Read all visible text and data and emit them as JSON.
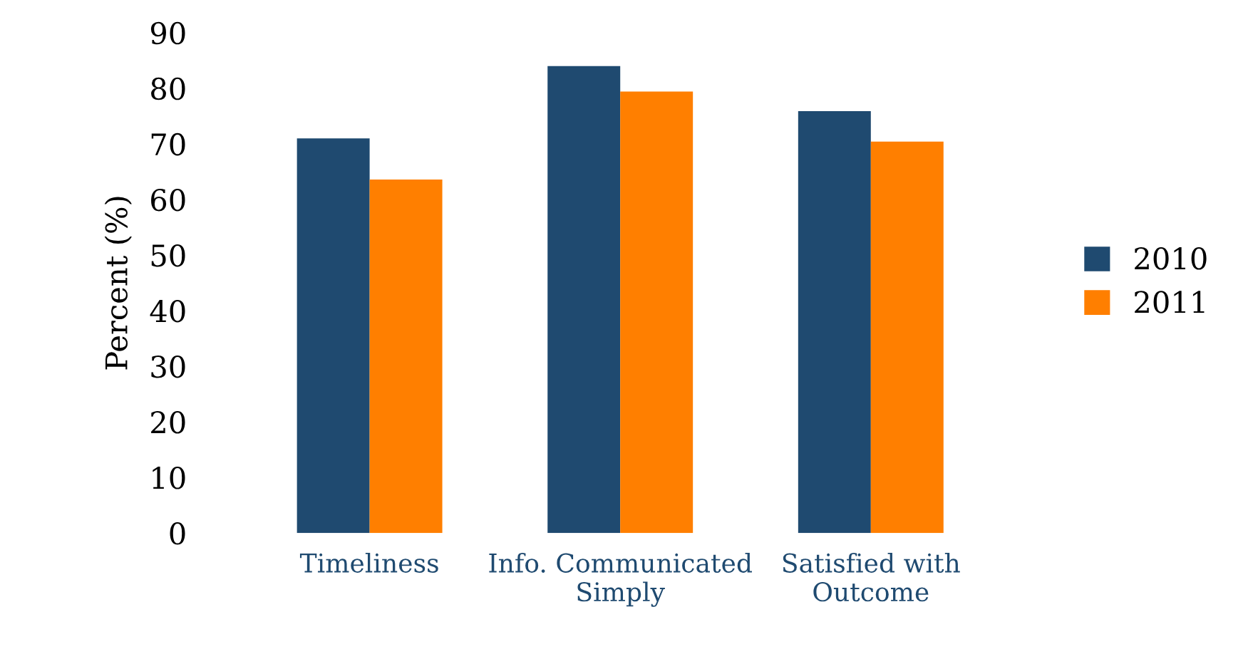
{
  "chart_data": {
    "type": "bar",
    "ylabel": "Percent (%)",
    "categories": [
      "Timeliness",
      "Info. Communicated\nSimply",
      "Satisfied with\nOutcome"
    ],
    "series": [
      {
        "name": "2010",
        "color": "#1f4a70",
        "values": [
          71.0,
          84.0,
          75.9
        ]
      },
      {
        "name": "2011",
        "color": "#ff7f00",
        "values": [
          63.6,
          79.4,
          70.4
        ]
      }
    ],
    "ylim": [
      0,
      90
    ],
    "yticks": [
      0,
      10,
      20,
      30,
      40,
      50,
      60,
      70,
      80,
      90
    ],
    "grid": false,
    "legend": "right"
  }
}
